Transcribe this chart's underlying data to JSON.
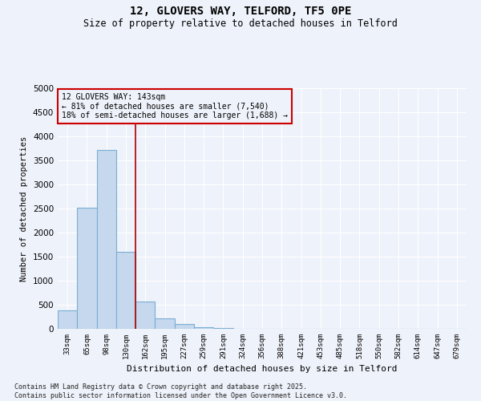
{
  "title": "12, GLOVERS WAY, TELFORD, TF5 0PE",
  "subtitle": "Size of property relative to detached houses in Telford",
  "xlabel": "Distribution of detached houses by size in Telford",
  "ylabel": "Number of detached properties",
  "categories": [
    "33sqm",
    "65sqm",
    "98sqm",
    "130sqm",
    "162sqm",
    "195sqm",
    "227sqm",
    "259sqm",
    "291sqm",
    "324sqm",
    "356sqm",
    "388sqm",
    "421sqm",
    "453sqm",
    "485sqm",
    "518sqm",
    "550sqm",
    "582sqm",
    "614sqm",
    "647sqm",
    "679sqm"
  ],
  "values": [
    380,
    2520,
    3720,
    1600,
    570,
    215,
    100,
    35,
    12,
    5,
    0,
    0,
    0,
    0,
    0,
    0,
    0,
    0,
    0,
    0,
    0
  ],
  "bar_color": "#c5d8ed",
  "bar_edge_color": "#7aaed4",
  "vline_pos": 3.5,
  "vline_color": "#aa0000",
  "annotation_text": "12 GLOVERS WAY: 143sqm\n← 81% of detached houses are smaller (7,540)\n18% of semi-detached houses are larger (1,688) →",
  "annotation_box_facecolor": "#eef2fa",
  "annotation_box_edgecolor": "#cc0000",
  "ylim": [
    0,
    5000
  ],
  "yticks": [
    0,
    500,
    1000,
    1500,
    2000,
    2500,
    3000,
    3500,
    4000,
    4500,
    5000
  ],
  "footer": "Contains HM Land Registry data © Crown copyright and database right 2025.\nContains public sector information licensed under the Open Government Licence v3.0.",
  "bg_color": "#eef2fa",
  "grid_color": "#ffffff"
}
